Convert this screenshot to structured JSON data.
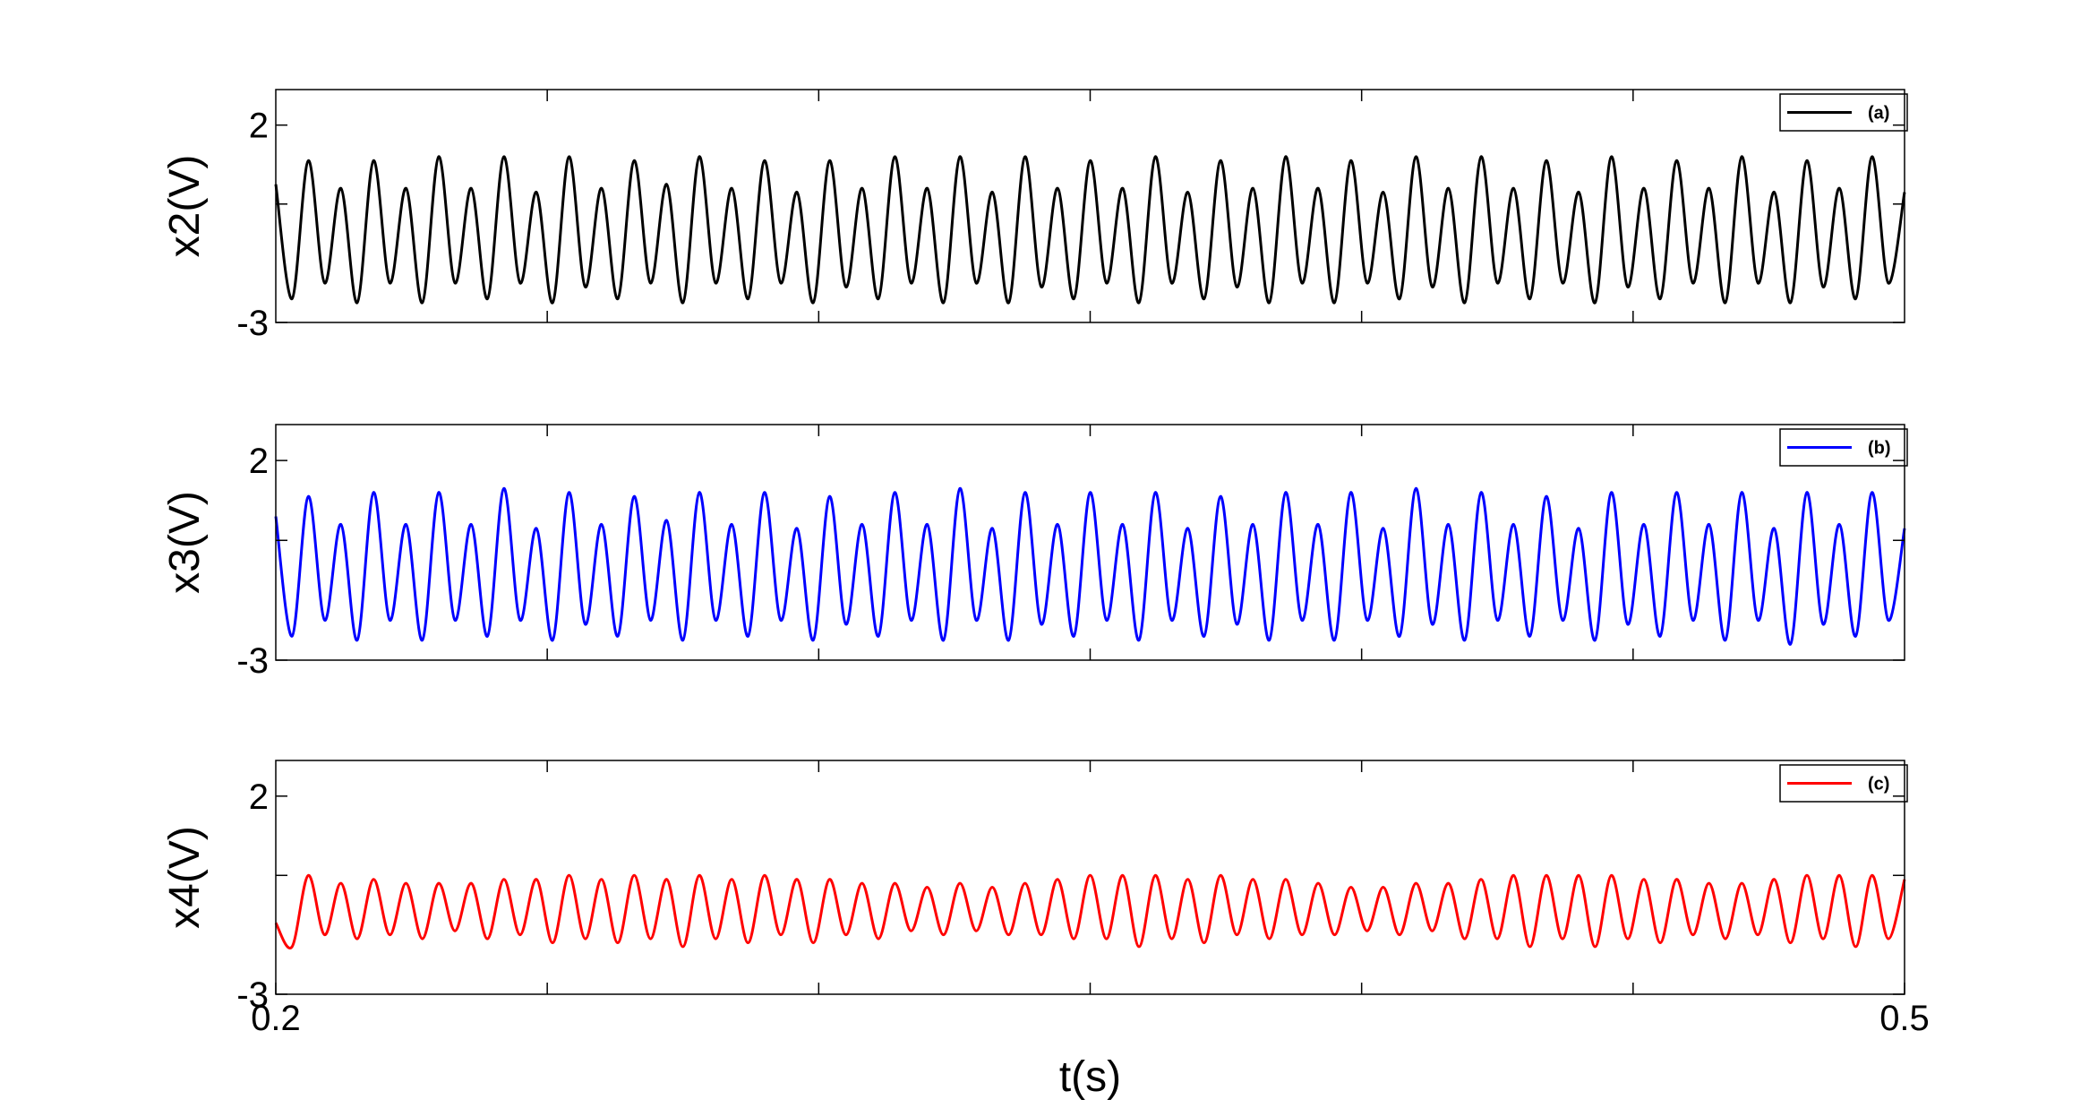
{
  "chart_data": [
    {
      "type": "line",
      "ylabel": "x2(V)",
      "x": [
        0.2,
        0.203,
        0.206,
        0.209,
        0.212,
        0.215,
        0.218,
        0.221,
        0.224,
        0.227,
        0.23,
        0.233,
        0.236,
        0.239,
        0.242,
        0.245,
        0.248,
        0.251,
        0.254,
        0.257,
        0.26,
        0.263,
        0.266,
        0.269,
        0.272,
        0.275,
        0.278,
        0.281,
        0.284,
        0.287,
        0.29,
        0.293,
        0.296,
        0.299,
        0.302,
        0.305,
        0.308,
        0.311,
        0.314,
        0.317,
        0.32,
        0.323,
        0.326,
        0.329,
        0.332,
        0.335,
        0.338,
        0.341,
        0.344,
        0.347,
        0.35,
        0.353,
        0.356,
        0.359,
        0.362,
        0.365,
        0.368,
        0.371,
        0.374,
        0.377,
        0.38,
        0.383,
        0.386,
        0.389,
        0.392,
        0.395,
        0.398,
        0.401,
        0.404,
        0.407,
        0.41,
        0.413,
        0.416,
        0.419,
        0.422,
        0.425,
        0.428,
        0.431,
        0.434,
        0.437,
        0.44,
        0.443,
        0.446,
        0.449,
        0.452,
        0.455,
        0.458,
        0.461,
        0.464,
        0.467,
        0.47,
        0.473,
        0.476,
        0.479,
        0.482,
        0.485,
        0.488,
        0.491,
        0.494,
        0.497,
        0.5
      ],
      "series": [
        {
          "name": "(a)",
          "color": "#000000",
          "values": [
            0.5,
            -2.4,
            1.1,
            -2.0,
            0.4,
            -2.5,
            1.1,
            -2.0,
            0.4,
            -2.5,
            1.2,
            -2.0,
            0.4,
            -2.4,
            1.2,
            -2.0,
            0.3,
            -2.5,
            1.2,
            -2.1,
            0.4,
            -2.4,
            1.1,
            -2.0,
            0.5,
            -2.5,
            1.2,
            -2.0,
            0.4,
            -2.4,
            1.1,
            -2.0,
            0.3,
            -2.5,
            1.1,
            -2.1,
            0.4,
            -2.4,
            1.2,
            -2.0,
            0.4,
            -2.5,
            1.2,
            -2.0,
            0.3,
            -2.5,
            1.2,
            -2.1,
            0.4,
            -2.4,
            1.1,
            -2.0,
            0.4,
            -2.5,
            1.2,
            -2.0,
            0.3,
            -2.4,
            1.1,
            -2.1,
            0.4,
            -2.5,
            1.2,
            -2.0,
            0.4,
            -2.5,
            1.1,
            -2.0,
            0.3,
            -2.4,
            1.2,
            -2.1,
            0.4,
            -2.5,
            1.2,
            -2.0,
            0.4,
            -2.4,
            1.1,
            -2.0,
            0.3,
            -2.5,
            1.2,
            -2.1,
            0.4,
            -2.4,
            1.1,
            -2.0,
            0.4,
            -2.5,
            1.2,
            -2.0,
            0.3,
            -2.5,
            1.1,
            -2.1,
            0.4,
            -2.4,
            1.2,
            -2.0,
            0.3
          ]
        }
      ],
      "xlim": [
        0.2,
        0.5
      ],
      "x_minor_ticks": [
        0.25,
        0.3,
        0.35,
        0.4,
        0.45
      ],
      "ylim": [
        -3,
        2.9
      ],
      "yticks": [
        -3,
        2
      ],
      "y_minor_ticks": [
        0
      ]
    },
    {
      "type": "line",
      "ylabel": "x3(V)",
      "x": [
        0.2,
        0.203,
        0.206,
        0.209,
        0.212,
        0.215,
        0.218,
        0.221,
        0.224,
        0.227,
        0.23,
        0.233,
        0.236,
        0.239,
        0.242,
        0.245,
        0.248,
        0.251,
        0.254,
        0.257,
        0.26,
        0.263,
        0.266,
        0.269,
        0.272,
        0.275,
        0.278,
        0.281,
        0.284,
        0.287,
        0.29,
        0.293,
        0.296,
        0.299,
        0.302,
        0.305,
        0.308,
        0.311,
        0.314,
        0.317,
        0.32,
        0.323,
        0.326,
        0.329,
        0.332,
        0.335,
        0.338,
        0.341,
        0.344,
        0.347,
        0.35,
        0.353,
        0.356,
        0.359,
        0.362,
        0.365,
        0.368,
        0.371,
        0.374,
        0.377,
        0.38,
        0.383,
        0.386,
        0.389,
        0.392,
        0.395,
        0.398,
        0.401,
        0.404,
        0.407,
        0.41,
        0.413,
        0.416,
        0.419,
        0.422,
        0.425,
        0.428,
        0.431,
        0.434,
        0.437,
        0.44,
        0.443,
        0.446,
        0.449,
        0.452,
        0.455,
        0.458,
        0.461,
        0.464,
        0.467,
        0.47,
        0.473,
        0.476,
        0.479,
        0.482,
        0.485,
        0.488,
        0.491,
        0.494,
        0.497,
        0.5
      ],
      "series": [
        {
          "name": "(b)",
          "color": "#0000ff",
          "values": [
            0.6,
            -2.4,
            1.1,
            -2.0,
            0.4,
            -2.5,
            1.2,
            -2.0,
            0.4,
            -2.5,
            1.2,
            -2.0,
            0.4,
            -2.4,
            1.3,
            -2.0,
            0.3,
            -2.5,
            1.2,
            -2.1,
            0.4,
            -2.4,
            1.1,
            -2.0,
            0.5,
            -2.5,
            1.2,
            -2.0,
            0.4,
            -2.4,
            1.2,
            -2.0,
            0.3,
            -2.5,
            1.1,
            -2.1,
            0.4,
            -2.4,
            1.2,
            -2.0,
            0.4,
            -2.5,
            1.3,
            -2.0,
            0.3,
            -2.5,
            1.2,
            -2.1,
            0.4,
            -2.4,
            1.2,
            -2.0,
            0.4,
            -2.5,
            1.2,
            -2.0,
            0.3,
            -2.4,
            1.1,
            -2.1,
            0.4,
            -2.5,
            1.2,
            -2.0,
            0.4,
            -2.5,
            1.2,
            -2.0,
            0.3,
            -2.4,
            1.3,
            -2.1,
            0.4,
            -2.5,
            1.2,
            -2.0,
            0.4,
            -2.4,
            1.1,
            -2.0,
            0.3,
            -2.5,
            1.2,
            -2.1,
            0.4,
            -2.4,
            1.2,
            -2.0,
            0.4,
            -2.5,
            1.2,
            -2.0,
            0.3,
            -2.6,
            1.2,
            -2.1,
            0.4,
            -2.4,
            1.2,
            -2.0,
            0.3
          ]
        }
      ],
      "xlim": [
        0.2,
        0.5
      ],
      "x_minor_ticks": [
        0.25,
        0.3,
        0.35,
        0.4,
        0.45
      ],
      "ylim": [
        -3,
        2.9
      ],
      "yticks": [
        -3,
        2
      ],
      "y_minor_ticks": [
        0
      ]
    },
    {
      "type": "line",
      "ylabel": "x4(V)",
      "xlabel": "t(s)",
      "x": [
        0.2,
        0.203,
        0.206,
        0.209,
        0.212,
        0.215,
        0.218,
        0.221,
        0.224,
        0.227,
        0.23,
        0.233,
        0.236,
        0.239,
        0.242,
        0.245,
        0.248,
        0.251,
        0.254,
        0.257,
        0.26,
        0.263,
        0.266,
        0.269,
        0.272,
        0.275,
        0.278,
        0.281,
        0.284,
        0.287,
        0.29,
        0.293,
        0.296,
        0.299,
        0.302,
        0.305,
        0.308,
        0.311,
        0.314,
        0.317,
        0.32,
        0.323,
        0.326,
        0.329,
        0.332,
        0.335,
        0.338,
        0.341,
        0.344,
        0.347,
        0.35,
        0.353,
        0.356,
        0.359,
        0.362,
        0.365,
        0.368,
        0.371,
        0.374,
        0.377,
        0.38,
        0.383,
        0.386,
        0.389,
        0.392,
        0.395,
        0.398,
        0.401,
        0.404,
        0.407,
        0.41,
        0.413,
        0.416,
        0.419,
        0.422,
        0.425,
        0.428,
        0.431,
        0.434,
        0.437,
        0.44,
        0.443,
        0.446,
        0.449,
        0.452,
        0.455,
        0.458,
        0.461,
        0.464,
        0.467,
        0.47,
        0.473,
        0.476,
        0.479,
        0.482,
        0.485,
        0.488,
        0.491,
        0.494,
        0.497,
        0.5
      ],
      "series": [
        {
          "name": "(c)",
          "color": "#ff0000",
          "values": [
            -1.2,
            -1.8,
            0.0,
            -1.5,
            -0.2,
            -1.6,
            -0.1,
            -1.5,
            -0.2,
            -1.6,
            -0.2,
            -1.4,
            -0.2,
            -1.6,
            -0.1,
            -1.5,
            -0.1,
            -1.7,
            0.0,
            -1.6,
            -0.1,
            -1.7,
            0.0,
            -1.6,
            -0.1,
            -1.8,
            0.0,
            -1.6,
            -0.1,
            -1.7,
            0.0,
            -1.5,
            -0.1,
            -1.7,
            -0.1,
            -1.5,
            -0.2,
            -1.6,
            -0.2,
            -1.4,
            -0.3,
            -1.5,
            -0.2,
            -1.4,
            -0.3,
            -1.5,
            -0.2,
            -1.5,
            -0.1,
            -1.6,
            0.0,
            -1.6,
            0.0,
            -1.8,
            0.0,
            -1.6,
            -0.1,
            -1.7,
            0.0,
            -1.5,
            -0.1,
            -1.6,
            -0.1,
            -1.5,
            -0.2,
            -1.5,
            -0.3,
            -1.4,
            -0.3,
            -1.5,
            -0.2,
            -1.4,
            -0.2,
            -1.6,
            -0.1,
            -1.6,
            0.0,
            -1.8,
            0.0,
            -1.6,
            0.0,
            -1.8,
            0.0,
            -1.6,
            -0.1,
            -1.7,
            -0.1,
            -1.5,
            -0.2,
            -1.6,
            -0.2,
            -1.5,
            -0.1,
            -1.7,
            0.0,
            -1.6,
            0.0,
            -1.8,
            0.0,
            -1.6,
            -0.1
          ]
        }
      ],
      "xlim": [
        0.2,
        0.5
      ],
      "xticks": [
        0.2,
        0.5
      ],
      "x_minor_ticks": [
        0.25,
        0.3,
        0.35,
        0.4,
        0.45
      ],
      "ylim": [
        -3,
        2.9
      ],
      "yticks": [
        -3,
        2
      ],
      "y_minor_ticks": [
        0
      ]
    }
  ]
}
